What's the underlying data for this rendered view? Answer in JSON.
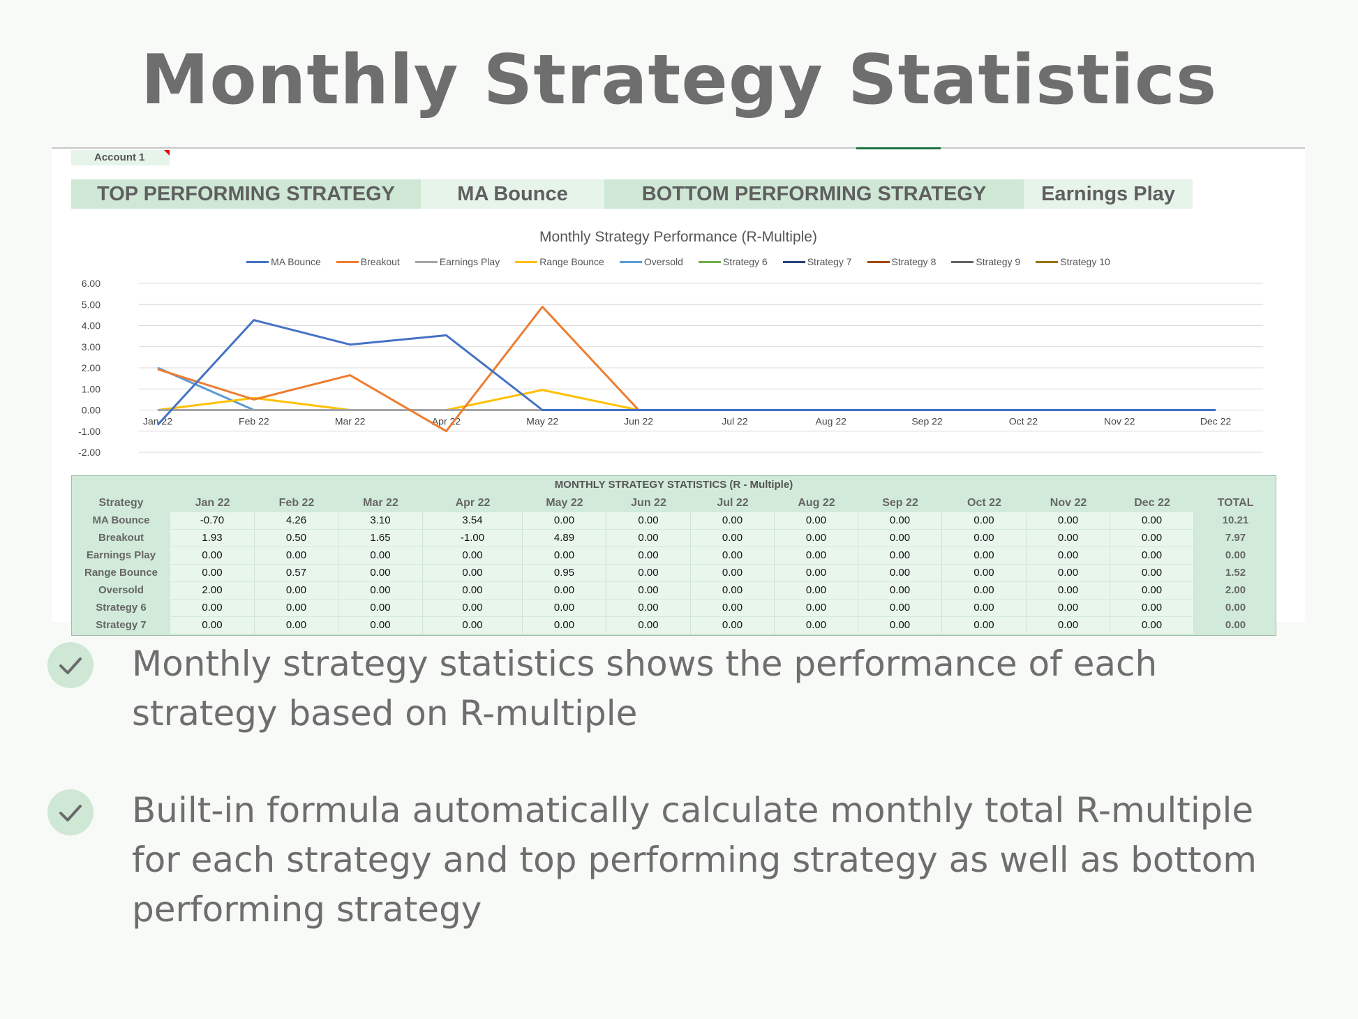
{
  "page_title": "Monthly Strategy Statistics",
  "sheet": {
    "account_label": "Account 1",
    "top_label": "TOP PERFORMING STRATEGY",
    "top_value": "MA Bounce",
    "bottom_label": "BOTTOM PERFORMING STRATEGY",
    "bottom_value": "Earnings Play"
  },
  "chart_data": {
    "type": "line",
    "title": "Monthly Strategy Performance (R-Multiple)",
    "legend_position": "top",
    "grid": true,
    "categories": [
      "Jan 22",
      "Feb 22",
      "Mar 22",
      "Apr 22",
      "May 22",
      "Jun 22",
      "Jul 22",
      "Aug 22",
      "Sep 22",
      "Oct 22",
      "Nov 22",
      "Dec 22"
    ],
    "ylim": [
      -2,
      6
    ],
    "yticks": [
      "6.00",
      "5.00",
      "4.00",
      "3.00",
      "2.00",
      "1.00",
      "0.00",
      "-1.00",
      "-2.00"
    ],
    "series": [
      {
        "name": "MA Bounce",
        "color": "#4472c4",
        "values": [
          -0.7,
          4.26,
          3.1,
          3.54,
          0,
          0,
          0,
          0,
          0,
          0,
          0,
          0
        ]
      },
      {
        "name": "Breakout",
        "color": "#ed7d31",
        "values": [
          1.93,
          0.5,
          1.65,
          -1.0,
          4.89,
          0,
          0,
          0,
          0,
          0,
          0,
          0
        ]
      },
      {
        "name": "Earnings Play",
        "color": "#a5a5a5",
        "values": [
          0,
          0,
          0,
          0,
          0,
          0,
          0,
          0,
          0,
          0,
          0,
          0
        ]
      },
      {
        "name": "Range Bounce",
        "color": "#ffc000",
        "values": [
          0,
          0.57,
          0,
          0,
          0.95,
          0,
          0,
          0,
          0,
          0,
          0,
          0
        ]
      },
      {
        "name": "Oversold",
        "color": "#5b9bd5",
        "values": [
          2.0,
          0,
          0,
          0,
          0,
          0,
          0,
          0,
          0,
          0,
          0,
          0
        ]
      },
      {
        "name": "Strategy 6",
        "color": "#70ad47",
        "values": [
          0,
          0,
          0,
          0,
          0,
          0,
          0,
          0,
          0,
          0,
          0,
          0
        ]
      },
      {
        "name": "Strategy 7",
        "color": "#264478",
        "values": [
          0,
          0,
          0,
          0,
          0,
          0,
          0,
          0,
          0,
          0,
          0,
          0
        ]
      },
      {
        "name": "Strategy 8",
        "color": "#9e480e",
        "values": [
          0,
          0,
          0,
          0,
          0,
          0,
          0,
          0,
          0,
          0,
          0,
          0
        ]
      },
      {
        "name": "Strategy 9",
        "color": "#636363",
        "values": [
          0,
          0,
          0,
          0,
          0,
          0,
          0,
          0,
          0,
          0,
          0,
          0
        ]
      },
      {
        "name": "Strategy 10",
        "color": "#997300",
        "values": [
          0,
          0,
          0,
          0,
          0,
          0,
          0,
          0,
          0,
          0,
          0,
          0
        ]
      }
    ]
  },
  "table": {
    "title": "MONTHLY STRATEGY STATISTICS (R - Multiple)",
    "headers": [
      "Strategy",
      "Jan 22",
      "Feb 22",
      "Mar 22",
      "Apr 22",
      "May 22",
      "Jun 22",
      "Jul 22",
      "Aug 22",
      "Sep 22",
      "Oct 22",
      "Nov 22",
      "Dec 22",
      "TOTAL"
    ],
    "rows": [
      [
        "MA Bounce",
        "-0.70",
        "4.26",
        "3.10",
        "3.54",
        "0.00",
        "0.00",
        "0.00",
        "0.00",
        "0.00",
        "0.00",
        "0.00",
        "0.00",
        "10.21"
      ],
      [
        "Breakout",
        "1.93",
        "0.50",
        "1.65",
        "-1.00",
        "4.89",
        "0.00",
        "0.00",
        "0.00",
        "0.00",
        "0.00",
        "0.00",
        "0.00",
        "7.97"
      ],
      [
        "Earnings Play",
        "0.00",
        "0.00",
        "0.00",
        "0.00",
        "0.00",
        "0.00",
        "0.00",
        "0.00",
        "0.00",
        "0.00",
        "0.00",
        "0.00",
        "0.00"
      ],
      [
        "Range Bounce",
        "0.00",
        "0.57",
        "0.00",
        "0.00",
        "0.95",
        "0.00",
        "0.00",
        "0.00",
        "0.00",
        "0.00",
        "0.00",
        "0.00",
        "1.52"
      ],
      [
        "Oversold",
        "2.00",
        "0.00",
        "0.00",
        "0.00",
        "0.00",
        "0.00",
        "0.00",
        "0.00",
        "0.00",
        "0.00",
        "0.00",
        "0.00",
        "2.00"
      ],
      [
        "Strategy 6",
        "0.00",
        "0.00",
        "0.00",
        "0.00",
        "0.00",
        "0.00",
        "0.00",
        "0.00",
        "0.00",
        "0.00",
        "0.00",
        "0.00",
        "0.00"
      ],
      [
        "Strategy 7",
        "0.00",
        "0.00",
        "0.00",
        "0.00",
        "0.00",
        "0.00",
        "0.00",
        "0.00",
        "0.00",
        "0.00",
        "0.00",
        "0.00",
        "0.00"
      ]
    ]
  },
  "bullets": [
    {
      "icon": "check-icon",
      "text": "Monthly strategy statistics shows the performance of each strategy based on R-multiple"
    },
    {
      "icon": "check-icon",
      "text": "Built-in formula automatically calculate monthly total R-multiple for each strategy and top performing strategy as well as bottom performing strategy"
    }
  ]
}
